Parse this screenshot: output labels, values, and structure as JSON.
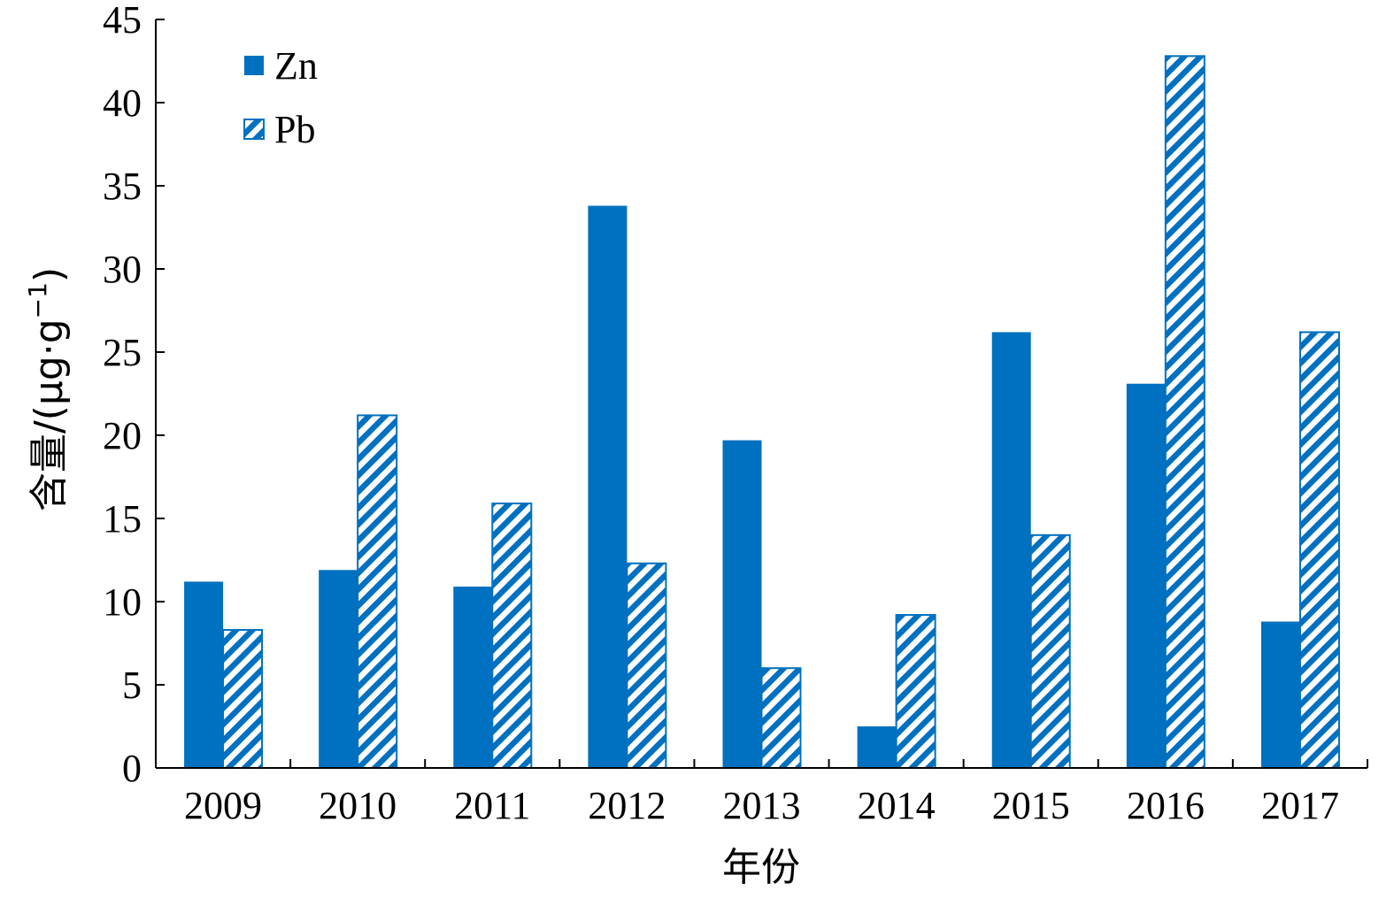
{
  "chart_data": {
    "type": "bar",
    "title": "",
    "xlabel": "年份",
    "ylabel": "含量/(μg·g",
    "ylabel_superscript": "−1",
    "ylabel_close": ")",
    "categories": [
      "2009",
      "2010",
      "2011",
      "2012",
      "2013",
      "2014",
      "2015",
      "2016",
      "2017"
    ],
    "series": [
      {
        "name": "Zn",
        "values": [
          11.2,
          11.9,
          10.9,
          33.8,
          19.7,
          2.5,
          26.2,
          23.1,
          8.8
        ],
        "fill": "solid",
        "color": "#0070C0"
      },
      {
        "name": "Pb",
        "values": [
          8.3,
          21.2,
          15.9,
          12.3,
          6.0,
          9.2,
          14.0,
          42.8,
          26.2
        ],
        "fill": "diagonal-hatch",
        "color": "#0070C0"
      }
    ],
    "ylim": [
      0,
      45
    ],
    "yticks": [
      0,
      5,
      10,
      15,
      20,
      25,
      30,
      35,
      40,
      45
    ],
    "grid": false,
    "legend_position": "top-left"
  }
}
